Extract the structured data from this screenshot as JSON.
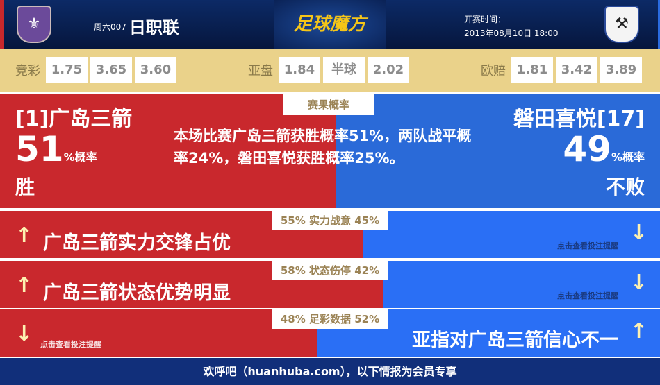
{
  "header": {
    "home_logo_icon": "sanfrecce-crest",
    "away_logo_icon": "jubilo-crest",
    "round": "周六007",
    "league": "日职联",
    "brand": "足球魔方",
    "kickoff_label": "开赛时间：",
    "kickoff_time": "2013年08月10日 18:00"
  },
  "odds": {
    "jingcai": {
      "label": "竞彩",
      "values": [
        "1.75",
        "3.65",
        "3.60"
      ]
    },
    "yapan": {
      "label": "亚盘",
      "values": [
        "1.84",
        "半球",
        "2.02"
      ]
    },
    "oupei": {
      "label": "欧赔",
      "values": [
        "1.81",
        "3.42",
        "3.89"
      ]
    }
  },
  "probability": {
    "tab": "赛果概率",
    "home": {
      "name": "[1]广岛三箭",
      "pct": "51",
      "unit": "%概率",
      "result": "胜"
    },
    "away": {
      "name": "磐田喜悦[17]",
      "pct": "49",
      "unit": "%概率",
      "result": "不败"
    },
    "description": "本场比赛广岛三箭获胜概率51%，两队战平概率24%，磐田喜悦获胜概率25%。"
  },
  "rows": [
    {
      "caption": "55% 实力战意 45%",
      "home_share": 55,
      "text": "广岛三箭实力交锋占优",
      "hint": "点击查看投注提醒",
      "side": "home"
    },
    {
      "caption": "58% 状态伤停 42%",
      "home_share": 58,
      "text": "广岛三箭状态优势明显",
      "hint": "点击查看投注提醒",
      "side": "home"
    },
    {
      "caption": "48% 足彩数据 52%",
      "home_share": 48,
      "text": "亚指对广岛三箭信心不一",
      "hint": "点击查看投注提醒",
      "side": "away"
    }
  ],
  "colors": {
    "home": "#c9282d",
    "away": "#2a6ad8",
    "odds_bg": "#ead28a"
  },
  "footer": "欢呼吧（huanhuba.com），以下情报为会员专享"
}
